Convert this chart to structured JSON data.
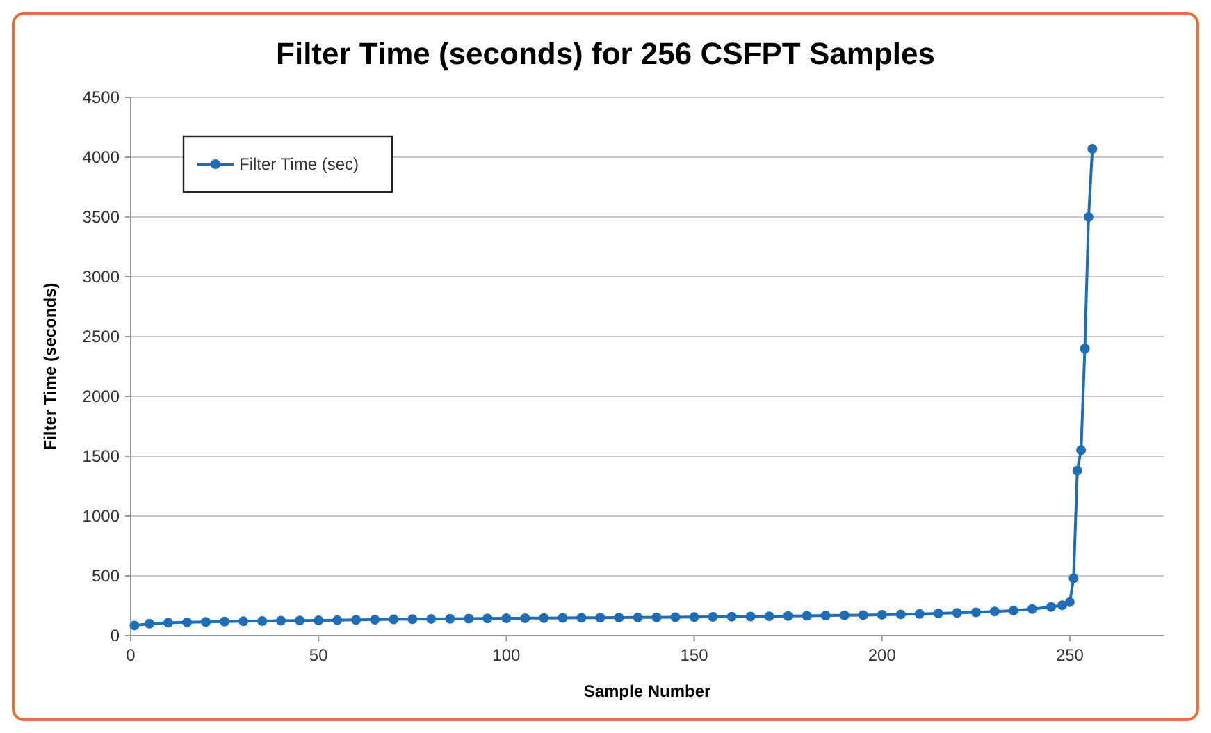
{
  "chart_data": {
    "type": "line",
    "title": "Filter Time (seconds) for 256 CSFPT Samples",
    "xlabel": "Sample Number",
    "ylabel": "Filter Time (seconds)",
    "x": [
      1,
      5,
      10,
      15,
      20,
      25,
      30,
      35,
      40,
      45,
      50,
      55,
      60,
      65,
      70,
      75,
      80,
      85,
      90,
      95,
      100,
      105,
      110,
      115,
      120,
      125,
      130,
      135,
      140,
      145,
      150,
      155,
      160,
      165,
      170,
      175,
      180,
      185,
      190,
      195,
      200,
      205,
      210,
      215,
      220,
      225,
      230,
      235,
      240,
      245,
      248,
      250,
      251,
      252,
      253,
      254,
      255,
      256
    ],
    "series": [
      {
        "name": "Filter Time (sec)",
        "color": "#1f6db5",
        "values": [
          85,
          100,
          108,
          112,
          115,
          118,
          120,
          122,
          125,
          127,
          128,
          130,
          132,
          134,
          136,
          138,
          140,
          141,
          142,
          144,
          145,
          146,
          147,
          148,
          149,
          150,
          151,
          152,
          153,
          154,
          155,
          157,
          158,
          160,
          162,
          164,
          166,
          168,
          170,
          172,
          175,
          178,
          182,
          186,
          190,
          195,
          202,
          210,
          222,
          240,
          255,
          280,
          480,
          1380,
          1550,
          2400,
          3500,
          4070
        ]
      }
    ],
    "xlim": [
      0,
      275
    ],
    "xticks": [
      0,
      50,
      100,
      150,
      200,
      250
    ],
    "ylim": [
      0,
      4500
    ],
    "yticks": [
      0,
      500,
      1000,
      1500,
      2000,
      2500,
      3000,
      3500,
      4000,
      4500
    ],
    "grid": "y",
    "legend": "top left",
    "marker": "circle",
    "line_style": "solid"
  }
}
